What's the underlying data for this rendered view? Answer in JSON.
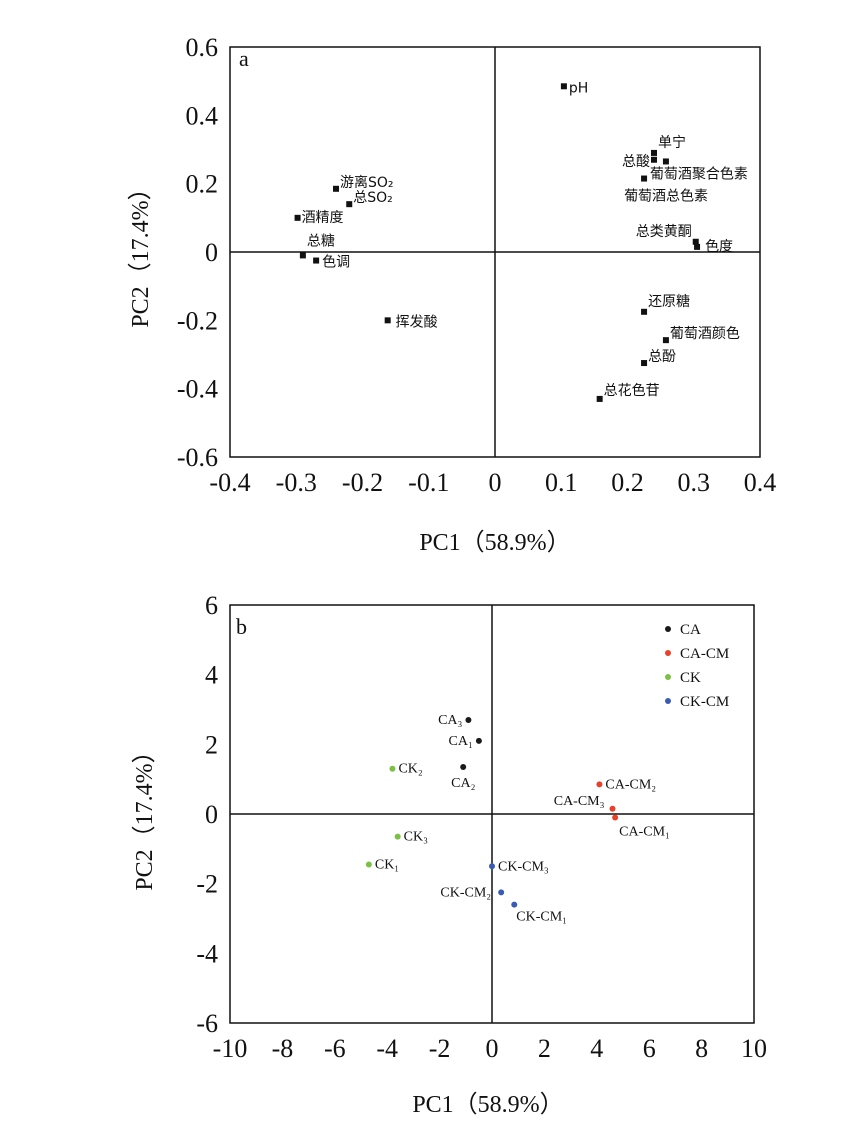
{
  "chart_data": [
    {
      "type": "scatter",
      "panel_label": "a",
      "xlabel": "PC1（58.9%）",
      "ylabel": "PC2（17.4%）",
      "xlim": [
        -0.4,
        0.4
      ],
      "ylim": [
        -0.6,
        0.6
      ],
      "xticks": [
        -0.4,
        -0.3,
        -0.2,
        -0.1,
        0,
        0.1,
        0.2,
        0.3,
        0.4
      ],
      "yticks": [
        -0.6,
        -0.4,
        -0.2,
        0,
        0.2,
        0.4,
        0.6
      ],
      "xtick_labels": [
        "-0.4",
        "-0.3",
        "-0.2",
        "-0.1",
        "0",
        "0.1",
        "0.2",
        "0.3",
        "0.4"
      ],
      "ytick_labels": [
        "-0.6",
        "-0.4",
        "-0.2",
        "0",
        "0.2",
        "0.4",
        "0.6"
      ],
      "grid": false,
      "marker_color": "#111111",
      "points": [
        {
          "label": "pH",
          "x": 0.104,
          "y": 0.485
        },
        {
          "label": "单宁",
          "x": 0.24,
          "y": 0.29
        },
        {
          "label": "总酸",
          "x": 0.24,
          "y": 0.27
        },
        {
          "label": "葡萄酒聚合色素",
          "x": 0.258,
          "y": 0.265
        },
        {
          "label": "葡萄酒总色素",
          "x": 0.225,
          "y": 0.215
        },
        {
          "label": "总类黄酮",
          "x": 0.303,
          "y": 0.03
        },
        {
          "label": "色度",
          "x": 0.305,
          "y": 0.015
        },
        {
          "label": "还原糖",
          "x": 0.225,
          "y": -0.175
        },
        {
          "label": "葡萄酒颜色",
          "x": 0.258,
          "y": -0.258
        },
        {
          "label": "总酚",
          "x": 0.225,
          "y": -0.325
        },
        {
          "label": "总花色苷",
          "x": 0.158,
          "y": -0.43
        },
        {
          "label": "游离SO₂",
          "x": -0.24,
          "y": 0.185
        },
        {
          "label": "总SO₂",
          "x": -0.22,
          "y": 0.14
        },
        {
          "label": "酒精度",
          "x": -0.298,
          "y": 0.1
        },
        {
          "label": "总糖",
          "x": -0.29,
          "y": -0.01
        },
        {
          "label": "色调",
          "x": -0.27,
          "y": -0.025
        },
        {
          "label": "挥发酸",
          "x": -0.162,
          "y": -0.2
        }
      ]
    },
    {
      "type": "scatter",
      "panel_label": "b",
      "xlabel": "PC1（58.9%）",
      "ylabel": "PC2（17.4%）",
      "xlim": [
        -10,
        10
      ],
      "ylim": [
        -6,
        6
      ],
      "xticks": [
        -10,
        -8,
        -6,
        -4,
        -2,
        0,
        2,
        4,
        6,
        8,
        10
      ],
      "yticks": [
        -6,
        -4,
        -2,
        0,
        2,
        4,
        6
      ],
      "xtick_labels": [
        "-10",
        "-8",
        "-6",
        "-4",
        "-2",
        "0",
        "2",
        "4",
        "6",
        "8",
        "10"
      ],
      "ytick_labels": [
        "-6",
        "-4",
        "-2",
        "0",
        "2",
        "4",
        "6"
      ],
      "grid": false,
      "legend_position": "top-right",
      "series": [
        {
          "name": "CA",
          "color": "#1a1a1a",
          "points": [
            {
              "label": "CA₃",
              "x": -0.9,
              "y": 2.7
            },
            {
              "label": "CA₁",
              "x": -0.5,
              "y": 2.1
            },
            {
              "label": "CA₂",
              "x": -1.1,
              "y": 1.35
            }
          ]
        },
        {
          "name": "CA-CM",
          "color": "#e8402a",
          "points": [
            {
              "label": "CA-CM₂",
              "x": 4.1,
              "y": 0.85
            },
            {
              "label": "CA-CM₃",
              "x": 4.6,
              "y": 0.15
            },
            {
              "label": "CA-CM₁",
              "x": 4.7,
              "y": -0.1
            }
          ]
        },
        {
          "name": "CK",
          "color": "#7ac143",
          "points": [
            {
              "label": "CK₂",
              "x": -3.8,
              "y": 1.3
            },
            {
              "label": "CK₃",
              "x": -3.6,
              "y": -0.65
            },
            {
              "label": "CK₁",
              "x": -4.7,
              "y": -1.45
            }
          ]
        },
        {
          "name": "CK-CM",
          "color": "#3a5bb5",
          "points": [
            {
              "label": "CK-CM₃",
              "x": 0.0,
              "y": -1.5
            },
            {
              "label": "CK-CM₂",
              "x": 0.35,
              "y": -2.25
            },
            {
              "label": "CK-CM₁",
              "x": 0.85,
              "y": -2.6
            }
          ]
        }
      ]
    }
  ]
}
